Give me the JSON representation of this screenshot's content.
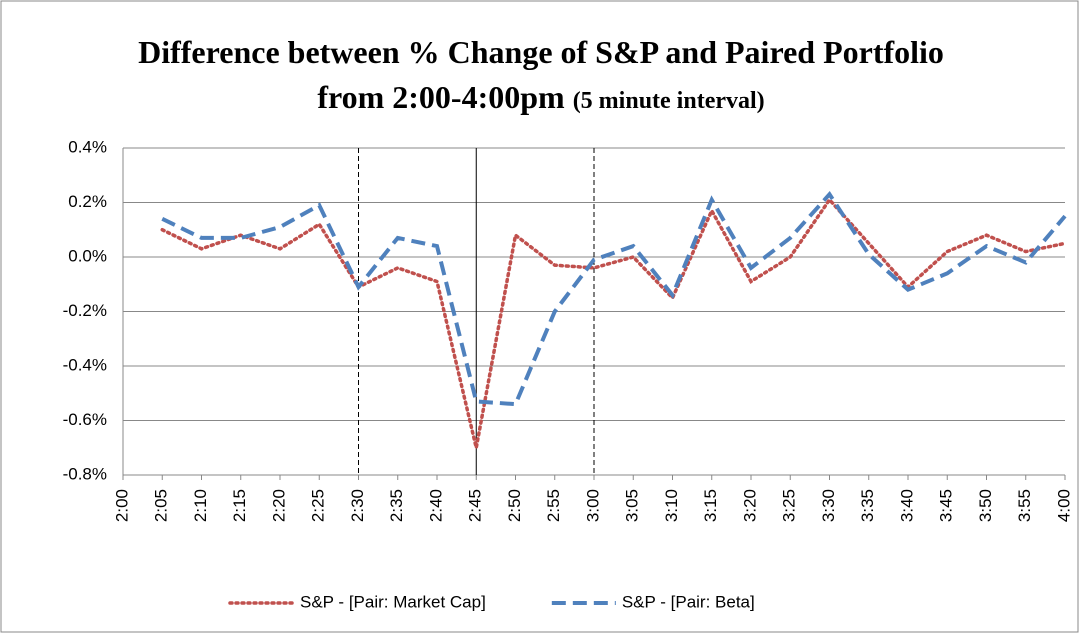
{
  "chart_data": {
    "type": "line",
    "title": "Difference between % Change of S&P and Paired Portfolio from 2:00-4:00pm",
    "subtitle": "(5 minute interval)",
    "categories": [
      "2:00",
      "2:05",
      "2:10",
      "2:15",
      "2:20",
      "2:25",
      "2:30",
      "2:35",
      "2:40",
      "2:45",
      "2:50",
      "2:55",
      "3:00",
      "3:05",
      "3:10",
      "3:15",
      "3:20",
      "3:25",
      "3:30",
      "3:35",
      "3:40",
      "3:45",
      "3:50",
      "3:55",
      "4:00"
    ],
    "series": [
      {
        "name": "S&P - [Pair: Market Cap]",
        "color": "#c0504d",
        "style": "dotted",
        "values": [
          null,
          0.1,
          0.03,
          0.08,
          0.03,
          0.12,
          -0.11,
          -0.04,
          -0.09,
          -0.7,
          0.08,
          -0.03,
          -0.04,
          0.0,
          -0.15,
          0.17,
          -0.09,
          0.0,
          0.21,
          0.05,
          -0.11,
          0.02,
          0.08,
          0.02,
          0.05
        ]
      },
      {
        "name": "S&P - [Pair: Beta]",
        "color": "#4f81bd",
        "style": "dashed",
        "values": [
          null,
          0.14,
          0.07,
          0.07,
          0.11,
          0.19,
          -0.11,
          0.07,
          0.04,
          -0.53,
          -0.54,
          -0.2,
          -0.01,
          0.04,
          -0.14,
          0.21,
          -0.04,
          0.07,
          0.23,
          0.01,
          -0.12,
          -0.06,
          0.04,
          -0.02,
          0.15
        ]
      }
    ],
    "ylim": [
      -0.8,
      0.4
    ],
    "yticks": [
      {
        "value": -0.8,
        "label": "-0.8%"
      },
      {
        "value": -0.6,
        "label": "-0.6%"
      },
      {
        "value": -0.4,
        "label": "-0.4%"
      },
      {
        "value": -0.2,
        "label": "-0.2%"
      },
      {
        "value": 0,
        "label": "0.0%"
      },
      {
        "value": 0.2,
        "label": "0.2%"
      },
      {
        "value": 0.4,
        "label": "0.4%"
      }
    ],
    "grid": true,
    "legend": "bottom",
    "vlines": [
      {
        "x": "2:30",
        "style": "dashed"
      },
      {
        "x": "2:45",
        "style": "solid"
      },
      {
        "x": "3:00",
        "style": "dashed"
      }
    ]
  }
}
